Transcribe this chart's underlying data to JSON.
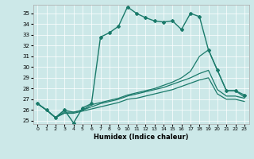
{
  "xlabel": "Humidex (Indice chaleur)",
  "bg_color": "#cce8e8",
  "line_color": "#1a7a6a",
  "grid_color": "#ffffff",
  "xlim": [
    -0.5,
    23.5
  ],
  "ylim": [
    24.7,
    35.8
  ],
  "yticks": [
    25,
    26,
    27,
    28,
    29,
    30,
    31,
    32,
    33,
    34,
    35
  ],
  "xticks": [
    0,
    1,
    2,
    3,
    4,
    5,
    6,
    7,
    8,
    9,
    10,
    11,
    12,
    13,
    14,
    15,
    16,
    17,
    18,
    19,
    20,
    21,
    22,
    23
  ],
  "lines": [
    {
      "x": [
        0,
        1,
        2,
        3,
        4,
        5,
        6,
        7,
        8,
        9,
        10,
        11,
        12,
        13,
        14,
        15,
        16,
        17,
        18,
        19,
        20,
        21,
        22,
        23
      ],
      "y": [
        26.6,
        26.0,
        25.3,
        26.0,
        24.8,
        26.2,
        26.6,
        32.8,
        33.2,
        33.8,
        35.6,
        35.0,
        34.6,
        34.3,
        34.2,
        34.3,
        33.5,
        35.0,
        34.7,
        31.6,
        29.7,
        27.8,
        27.8,
        27.4
      ],
      "marker": "D",
      "markersize": 2.0,
      "linewidth": 1.0,
      "linestyle": "-"
    },
    {
      "x": [
        0,
        1,
        2,
        3,
        4,
        5,
        6,
        7,
        8,
        9,
        10,
        11,
        12,
        13,
        14,
        15,
        16,
        17,
        18,
        19,
        20,
        21,
        22,
        23
      ],
      "y": [
        26.6,
        26.0,
        25.3,
        25.8,
        25.8,
        26.0,
        26.3,
        26.6,
        26.8,
        27.0,
        27.3,
        27.5,
        27.7,
        27.9,
        28.1,
        28.4,
        28.7,
        29.0,
        29.4,
        29.7,
        27.9,
        27.3,
        27.3,
        27.1
      ],
      "marker": null,
      "markersize": 0,
      "linewidth": 0.9,
      "linestyle": "-"
    },
    {
      "x": [
        0,
        1,
        2,
        3,
        4,
        5,
        6,
        7,
        8,
        9,
        10,
        11,
        12,
        13,
        14,
        15,
        16,
        17,
        18,
        19,
        20,
        21,
        22,
        23
      ],
      "y": [
        26.6,
        26.0,
        25.3,
        25.7,
        25.7,
        25.9,
        26.1,
        26.3,
        26.5,
        26.7,
        27.0,
        27.1,
        27.3,
        27.5,
        27.7,
        27.9,
        28.2,
        28.5,
        28.8,
        29.0,
        27.5,
        27.0,
        27.0,
        26.8
      ],
      "marker": null,
      "markersize": 0,
      "linewidth": 0.9,
      "linestyle": "-"
    },
    {
      "x": [
        0,
        1,
        2,
        3,
        4,
        5,
        6,
        7,
        8,
        9,
        10,
        11,
        12,
        13,
        14,
        15,
        16,
        17,
        18,
        19,
        20,
        21,
        22,
        23
      ],
      "y": [
        26.6,
        26.0,
        25.3,
        26.0,
        25.8,
        26.0,
        26.5,
        26.7,
        26.9,
        27.1,
        27.4,
        27.6,
        27.8,
        28.0,
        28.3,
        28.6,
        29.0,
        29.6,
        31.0,
        31.6,
        29.7,
        27.8,
        27.8,
        27.2
      ],
      "marker": null,
      "markersize": 0,
      "linewidth": 0.9,
      "linestyle": "-"
    }
  ]
}
